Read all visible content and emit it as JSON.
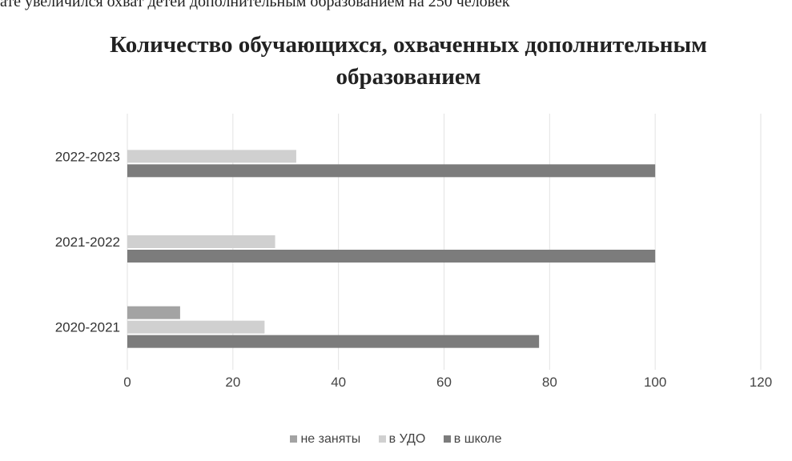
{
  "page_text": {
    "top_line": "ате увеличился охват детей дополнительным образованием на 250 человек"
  },
  "chart_data": {
    "type": "bar",
    "orientation": "horizontal",
    "title": "Количество обучающихся, охваченных дополнительным образованием",
    "categories": [
      "2020-2021",
      "2021-2022",
      "2022-2023"
    ],
    "series": [
      {
        "name": "не заняты",
        "color": "#a3a3a3",
        "values": [
          10,
          0,
          0
        ]
      },
      {
        "name": "в УДО",
        "color": "#d0d0d0",
        "values": [
          26,
          28,
          32
        ]
      },
      {
        "name": "в школе",
        "color": "#7c7c7c",
        "values": [
          78,
          100,
          100
        ]
      }
    ],
    "xlim": [
      0,
      120
    ],
    "xticks": [
      "0",
      "20",
      "40",
      "60",
      "80",
      "100",
      "120"
    ],
    "grid": true,
    "legend_position": "bottom"
  }
}
